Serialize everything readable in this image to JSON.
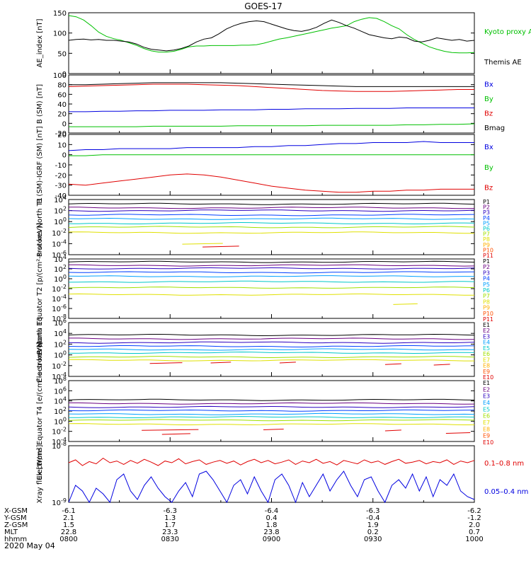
{
  "title": "GOES-17",
  "colors": {
    "black": "#000000",
    "red": "#e00000",
    "green": "#00c000",
    "lightgreen": "#00d000",
    "blue": "#0000e0",
    "p": [
      "#000000",
      "#6a0080",
      "#2a00c0",
      "#0040ff",
      "#00a0ff",
      "#00c8c8",
      "#00c040",
      "#a0e000",
      "#e0e000",
      "#ffb000",
      "#ff5000",
      "#e00000"
    ]
  },
  "chart_data": [
    {
      "type": "line",
      "ylabel": "AE_index [nT]",
      "ylim": [
        0,
        150
      ],
      "ticks": [
        "150",
        "100",
        "50",
        "0"
      ],
      "legend": [
        {
          "text": "Kyoto proxy AE",
          "color": "green"
        },
        {
          "text": "Themis AE",
          "color": "black"
        }
      ],
      "series": [
        {
          "name": "Kyoto proxy AE",
          "color": "green",
          "values": [
            143,
            140,
            132,
            118,
            102,
            92,
            86,
            82,
            76,
            70,
            62,
            56,
            53,
            53,
            55,
            60,
            66,
            68,
            68,
            69,
            69,
            69,
            69,
            70,
            70,
            71,
            75,
            80,
            85,
            88,
            92,
            96,
            100,
            104,
            108,
            112,
            115,
            118,
            128,
            134,
            138,
            136,
            128,
            118,
            110,
            96,
            84,
            75,
            66,
            60,
            55,
            52,
            51,
            51,
            52
          ]
        },
        {
          "name": "Themis AE",
          "color": "black",
          "values": [
            82,
            84,
            85,
            83,
            84,
            82,
            82,
            80,
            78,
            73,
            65,
            60,
            58,
            56,
            58,
            62,
            68,
            78,
            85,
            88,
            98,
            110,
            118,
            124,
            128,
            130,
            128,
            122,
            116,
            110,
            106,
            104,
            108,
            114,
            124,
            132,
            126,
            118,
            112,
            104,
            96,
            92,
            88,
            86,
            90,
            88,
            80,
            78,
            82,
            88,
            85,
            82,
            84,
            80,
            82
          ]
        }
      ]
    },
    {
      "type": "line",
      "ylabel": "B (SM) [nT]",
      "ylim": [
        -20,
        100
      ],
      "ticks": [
        "100",
        "80",
        "60",
        "40",
        "20",
        "0",
        "-20"
      ],
      "legend": [
        {
          "text": "Bx",
          "color": "blue"
        },
        {
          "text": "By",
          "color": "green"
        },
        {
          "text": "Bz",
          "color": "red"
        },
        {
          "text": "Bmag",
          "color": "black"
        }
      ],
      "series": [
        {
          "name": "Bmag",
          "color": "black",
          "values": [
            80,
            80,
            81,
            82,
            83,
            84,
            84,
            84,
            84,
            84,
            83,
            82,
            81,
            80,
            79,
            78,
            77,
            76,
            76,
            76,
            76,
            76,
            76,
            76,
            76
          ]
        },
        {
          "name": "Bz",
          "color": "red",
          "values": [
            76,
            77,
            78,
            79,
            80,
            81,
            81,
            81,
            80,
            79,
            78,
            76,
            74,
            72,
            70,
            68,
            67,
            66,
            66,
            66,
            67,
            68,
            69,
            70,
            70
          ]
        },
        {
          "name": "Bx",
          "color": "blue",
          "values": [
            24,
            24,
            25,
            25,
            26,
            26,
            27,
            27,
            27,
            28,
            28,
            28,
            29,
            29,
            30,
            30,
            30,
            31,
            31,
            31,
            32,
            32,
            32,
            32,
            32
          ]
        },
        {
          "name": "By",
          "color": "green",
          "values": [
            -7,
            -7,
            -7,
            -7,
            -7,
            -6,
            -6,
            -6,
            -6,
            -6,
            -5,
            -5,
            -5,
            -5,
            -5,
            -4,
            -4,
            -4,
            -4,
            -4,
            -3,
            -3,
            -2,
            -2,
            -1
          ]
        }
      ]
    },
    {
      "type": "line",
      "ylabel": "B (SM)-IGRF (SM) [nT]",
      "ylim": [
        -40,
        20
      ],
      "ticks": [
        "20",
        "10",
        "0",
        "-10",
        "-20",
        "-30",
        "-40"
      ],
      "legend": [
        {
          "text": "Bx",
          "color": "blue"
        },
        {
          "text": "By",
          "color": "green"
        },
        {
          "text": "Bz",
          "color": "red"
        }
      ],
      "series": [
        {
          "name": "Bx",
          "color": "blue",
          "values": [
            4,
            5,
            5,
            6,
            6,
            6,
            6,
            7,
            7,
            7,
            7,
            8,
            8,
            9,
            9,
            10,
            11,
            11,
            12,
            12,
            12,
            13,
            12,
            12,
            12
          ]
        },
        {
          "name": "By",
          "color": "green",
          "values": [
            -1,
            -1,
            0,
            0,
            0,
            0,
            0,
            0,
            0,
            0,
            0,
            0,
            0,
            0,
            0,
            0,
            0,
            0,
            0,
            0,
            0,
            0,
            0,
            0,
            0
          ]
        },
        {
          "name": "Bz",
          "color": "red",
          "values": [
            -29,
            -30,
            -28,
            -26,
            -24,
            -22,
            -20,
            -19,
            -20,
            -22,
            -25,
            -28,
            -31,
            -33,
            -35,
            -36,
            -37,
            -37,
            -36,
            -36,
            -35,
            -35,
            -34,
            -34,
            -34
          ]
        }
      ]
    },
    {
      "type": "line",
      "ylabel": "Protons North T1",
      "yscale": "log",
      "ylim": [
        -6,
        4
      ],
      "ticks": [
        "10^4",
        "10^2",
        "10^0",
        "10^-2",
        "10^-4",
        "10^-6"
      ],
      "legend": [
        {
          "text": "P1",
          "c": 0
        },
        {
          "text": "P2",
          "c": 1
        },
        {
          "text": "P3",
          "c": 2
        },
        {
          "text": "P4",
          "c": 3
        },
        {
          "text": "P5",
          "c": 4
        },
        {
          "text": "P6",
          "c": 5
        },
        {
          "text": "P7",
          "c": 7
        },
        {
          "text": "P8",
          "c": 8
        },
        {
          "text": "P9",
          "c": 9
        },
        {
          "text": "P10",
          "c": 10
        },
        {
          "text": "P11",
          "c": 11
        }
      ],
      "levels": [
        3.2,
        2.5,
        2.0,
        1.2,
        0.5,
        -0.3,
        -1.0,
        -2.0
      ],
      "fragments": [
        {
          "x0": 0.28,
          "x1": 0.38,
          "y": -4.1,
          "c": 8
        },
        {
          "x0": 0.33,
          "x1": 0.42,
          "y": -4.6,
          "c": 11
        }
      ]
    },
    {
      "type": "line",
      "ylabel": "Protons Equator T2 [p/(cm²-s-sr-keV)]",
      "yscale": "log",
      "ylim": [
        -8,
        4
      ],
      "ticks": [
        "10^4",
        "10^2",
        "10^0",
        "10^-2",
        "10^-4",
        "10^-6",
        "10^-8"
      ],
      "legend": [
        {
          "text": "P1",
          "c": 0
        },
        {
          "text": "P2",
          "c": 1
        },
        {
          "text": "P3",
          "c": 2
        },
        {
          "text": "P4",
          "c": 3
        },
        {
          "text": "P5",
          "c": 4
        },
        {
          "text": "P6",
          "c": 5
        },
        {
          "text": "P7",
          "c": 7
        },
        {
          "text": "P8",
          "c": 8
        },
        {
          "text": "P9",
          "c": 9
        },
        {
          "text": "P10",
          "c": 10
        },
        {
          "text": "P11",
          "c": 11
        }
      ],
      "levels": [
        3.4,
        2.7,
        2.1,
        1.3,
        0.5,
        -0.6,
        -1.8,
        -3.2
      ],
      "fragments": [
        {
          "x0": 0.8,
          "x1": 0.86,
          "y": -5.2,
          "c": 8
        }
      ]
    },
    {
      "type": "line",
      "ylabel": "Electrons North T3",
      "yscale": "log",
      "ylim": [
        -4,
        6
      ],
      "ticks": [
        "10^6",
        "10^4",
        "10^2",
        "10^0",
        "10^-2",
        "10^-4"
      ],
      "legend": [
        {
          "text": "E1",
          "c": 0
        },
        {
          "text": "E2",
          "c": 1
        },
        {
          "text": "E3",
          "c": 2
        },
        {
          "text": "E4",
          "c": 4
        },
        {
          "text": "E5",
          "c": 5
        },
        {
          "text": "E6",
          "c": 7
        },
        {
          "text": "E7",
          "c": 8
        },
        {
          "text": "E8",
          "c": 9
        },
        {
          "text": "E9",
          "c": 10
        },
        {
          "text": "E10",
          "c": 11
        }
      ],
      "levels": [
        3.7,
        3.0,
        2.3,
        1.6,
        1.0,
        0.4,
        -0.4,
        -1.0
      ],
      "fragments": [
        {
          "x0": 0.2,
          "x1": 0.28,
          "y": -1.6,
          "c": 11
        },
        {
          "x0": 0.35,
          "x1": 0.4,
          "y": -1.5,
          "c": 11
        },
        {
          "x0": 0.52,
          "x1": 0.56,
          "y": -1.5,
          "c": 11
        },
        {
          "x0": 0.78,
          "x1": 0.82,
          "y": -1.8,
          "c": 11
        },
        {
          "x0": 0.9,
          "x1": 0.94,
          "y": -1.9,
          "c": 11
        }
      ]
    },
    {
      "type": "line",
      "ylabel": "Electrons Equator T4 [e/(cm²-s-sr-keV)]",
      "yscale": "log",
      "ylim": [
        -4,
        8
      ],
      "ticks": [
        "10^8",
        "10^6",
        "10^4",
        "10^2",
        "10^0",
        "10^-2",
        "10^-4"
      ],
      "legend": [
        {
          "text": "E1",
          "c": 0
        },
        {
          "text": "E2",
          "c": 1
        },
        {
          "text": "E3",
          "c": 2
        },
        {
          "text": "E4",
          "c": 4
        },
        {
          "text": "E5",
          "c": 5
        },
        {
          "text": "E6",
          "c": 7
        },
        {
          "text": "E7",
          "c": 8
        },
        {
          "text": "E8",
          "c": 9
        },
        {
          "text": "E9",
          "c": 10
        },
        {
          "text": "E10",
          "c": 11
        }
      ],
      "levels": [
        4.2,
        3.5,
        2.8,
        2.1,
        1.4,
        0.8,
        0.2,
        -0.6
      ],
      "fragments": [
        {
          "x0": 0.18,
          "x1": 0.32,
          "y": -1.8,
          "c": 11
        },
        {
          "x0": 0.23,
          "x1": 0.3,
          "y": -2.6,
          "c": 11
        },
        {
          "x0": 0.48,
          "x1": 0.53,
          "y": -1.7,
          "c": 11
        },
        {
          "x0": 0.78,
          "x1": 0.82,
          "y": -1.9,
          "c": 11
        },
        {
          "x0": 0.93,
          "x1": 0.99,
          "y": -2.4,
          "c": 11
        }
      ]
    },
    {
      "type": "line",
      "ylabel": "Xray flux [W/m²]",
      "yscale": "log",
      "ylim": [
        -9,
        -8
      ],
      "ticks": [
        "10^-8",
        "10^-9"
      ],
      "legend": [
        {
          "text": "0.1–0.8 nm",
          "color": "red"
        },
        {
          "text": "0.05–0.4 nm",
          "color": "blue"
        }
      ],
      "series": [
        {
          "name": "0.1–0.8 nm",
          "color": "red",
          "values": [
            -8.3,
            -8.25,
            -8.35,
            -8.28,
            -8.32,
            -8.22,
            -8.3,
            -8.27,
            -8.33,
            -8.26,
            -8.31,
            -8.24,
            -8.29,
            -8.35,
            -8.27,
            -8.3,
            -8.23,
            -8.32,
            -8.28,
            -8.25,
            -8.33,
            -8.29,
            -8.26,
            -8.31,
            -8.27,
            -8.34,
            -8.28,
            -8.24,
            -8.3,
            -8.26,
            -8.32,
            -8.29,
            -8.25,
            -8.33,
            -8.27,
            -8.3,
            -8.24,
            -8.31,
            -8.28,
            -8.34,
            -8.26,
            -8.29,
            -8.32,
            -8.25,
            -8.3,
            -8.27,
            -8.33,
            -8.28,
            -8.24,
            -8.31,
            -8.29,
            -8.26,
            -8.32,
            -8.28,
            -8.3,
            -8.25,
            -8.33,
            -8.27,
            -8.3,
            -8.26
          ]
        },
        {
          "name": "0.05–0.4 nm",
          "color": "blue",
          "values": [
            -9.0,
            -8.7,
            -8.8,
            -9.0,
            -8.75,
            -8.85,
            -9.0,
            -8.6,
            -8.5,
            -8.8,
            -8.95,
            -8.7,
            -8.55,
            -8.75,
            -8.9,
            -9.0,
            -8.8,
            -8.65,
            -8.9,
            -8.5,
            -8.45,
            -8.6,
            -8.8,
            -9.0,
            -8.7,
            -8.6,
            -8.85,
            -8.55,
            -8.8,
            -9.0,
            -8.6,
            -8.5,
            -8.7,
            -9.0,
            -8.65,
            -8.9,
            -8.7,
            -8.5,
            -8.8,
            -8.6,
            -8.45,
            -8.7,
            -8.9,
            -8.6,
            -8.55,
            -8.8,
            -9.0,
            -8.7,
            -8.6,
            -8.75,
            -8.5,
            -8.8,
            -8.55,
            -8.9,
            -8.6,
            -8.7,
            -8.5,
            -8.8,
            -8.9,
            -8.95
          ]
        }
      ]
    }
  ],
  "xaxis_rows": [
    {
      "label": "X-GSM",
      "values": [
        "-6.1",
        "-6.3",
        "-6.4",
        "-6.3",
        "-6.2"
      ]
    },
    {
      "label": "Y-GSM",
      "values": [
        "2.1",
        "1.3",
        "0.4",
        "-0.4",
        "-1.2"
      ]
    },
    {
      "label": "Z-GSM",
      "values": [
        "1.5",
        "1.7",
        "1.8",
        "1.9",
        "2.0"
      ]
    },
    {
      "label": "MLT",
      "values": [
        "22.8",
        "23.3",
        "23.8",
        "0.2",
        "0.7"
      ]
    },
    {
      "label": "hhmm",
      "values": [
        "0800",
        "0830",
        "0900",
        "0930",
        "1000"
      ]
    }
  ],
  "date": "2020 May 04"
}
